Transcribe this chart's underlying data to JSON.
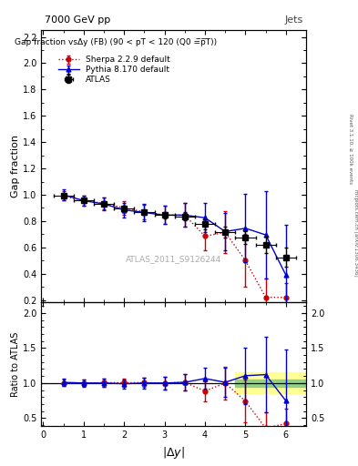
{
  "title_top": "7000 GeV pp",
  "title_right": "Jets",
  "main_title": "Gap fraction vsΔy (FB) (90 < pT < 120 (Q0 =̅p̅̅T̅))",
  "watermark": "ATLAS_2011_S9126244",
  "ylabel_main": "Gap fraction",
  "ylabel_ratio": "Ratio to ATLAS",
  "xlabel": "|$\\Delta y$|",
  "right_label": "Rivet 3.1.10, ≥ 100k events",
  "right_label2": "mcplots.cern.ch [arXiv:1306.3436]",
  "atlas_x": [
    0.5,
    1.0,
    1.5,
    2.0,
    2.5,
    3.0,
    3.5,
    4.0,
    4.5,
    5.0,
    5.5,
    6.0
  ],
  "atlas_y": [
    0.99,
    0.955,
    0.93,
    0.895,
    0.865,
    0.845,
    0.835,
    0.775,
    0.715,
    0.675,
    0.62,
    0.525
  ],
  "atlas_ex": [
    0.25,
    0.25,
    0.25,
    0.25,
    0.25,
    0.25,
    0.25,
    0.25,
    0.25,
    0.25,
    0.25,
    0.25
  ],
  "atlas_ey": [
    0.015,
    0.015,
    0.015,
    0.015,
    0.02,
    0.025,
    0.03,
    0.035,
    0.04,
    0.05,
    0.06,
    0.07
  ],
  "pythia_x": [
    0.5,
    1.0,
    1.5,
    2.0,
    2.5,
    3.0,
    3.5,
    4.0,
    4.5,
    5.0,
    5.5,
    6.0
  ],
  "pythia_y": [
    1.0,
    0.955,
    0.93,
    0.885,
    0.865,
    0.845,
    0.845,
    0.825,
    0.72,
    0.745,
    0.695,
    0.39
  ],
  "pythia_ey": [
    0.04,
    0.04,
    0.05,
    0.055,
    0.065,
    0.07,
    0.09,
    0.11,
    0.14,
    0.26,
    0.33,
    0.38
  ],
  "pythia_color": "#0000cc",
  "sherpa_x": [
    0.5,
    1.0,
    1.5,
    2.0,
    2.5,
    3.0,
    3.5,
    4.0,
    4.5,
    5.0,
    5.5,
    6.0
  ],
  "sherpa_y": [
    0.99,
    0.955,
    0.935,
    0.9,
    0.87,
    0.845,
    0.845,
    0.685,
    0.715,
    0.5,
    0.22,
    0.22
  ],
  "sherpa_ey": [
    0.035,
    0.04,
    0.045,
    0.05,
    0.055,
    0.07,
    0.09,
    0.11,
    0.16,
    0.2,
    0.14,
    0.11
  ],
  "sherpa_color": "#cc0000",
  "ratio_pythia_y": [
    1.01,
    1.0,
    1.0,
    0.99,
    1.0,
    1.0,
    1.01,
    1.065,
    1.01,
    1.105,
    1.12,
    0.745
  ],
  "ratio_pythia_ey": [
    0.055,
    0.055,
    0.06,
    0.065,
    0.08,
    0.09,
    0.12,
    0.15,
    0.21,
    0.4,
    0.54,
    0.74
  ],
  "ratio_sherpa_y": [
    1.0,
    1.0,
    1.005,
    1.005,
    1.005,
    1.0,
    1.01,
    0.885,
    1.0,
    0.74,
    0.355,
    0.42
  ],
  "ratio_sherpa_ey": [
    0.045,
    0.045,
    0.055,
    0.06,
    0.065,
    0.09,
    0.115,
    0.145,
    0.23,
    0.305,
    0.225,
    0.215
  ],
  "ylim_main": [
    0.18,
    2.25
  ],
  "ylim_ratio": [
    0.38,
    2.15
  ],
  "xlim": [
    -0.05,
    6.5
  ],
  "band_x1": 4.75,
  "band_x2": 6.5,
  "band_green_ylo": 0.95,
  "band_green_yhi": 1.05,
  "band_yellow_ylo": 0.85,
  "band_yellow_yhi": 1.15
}
